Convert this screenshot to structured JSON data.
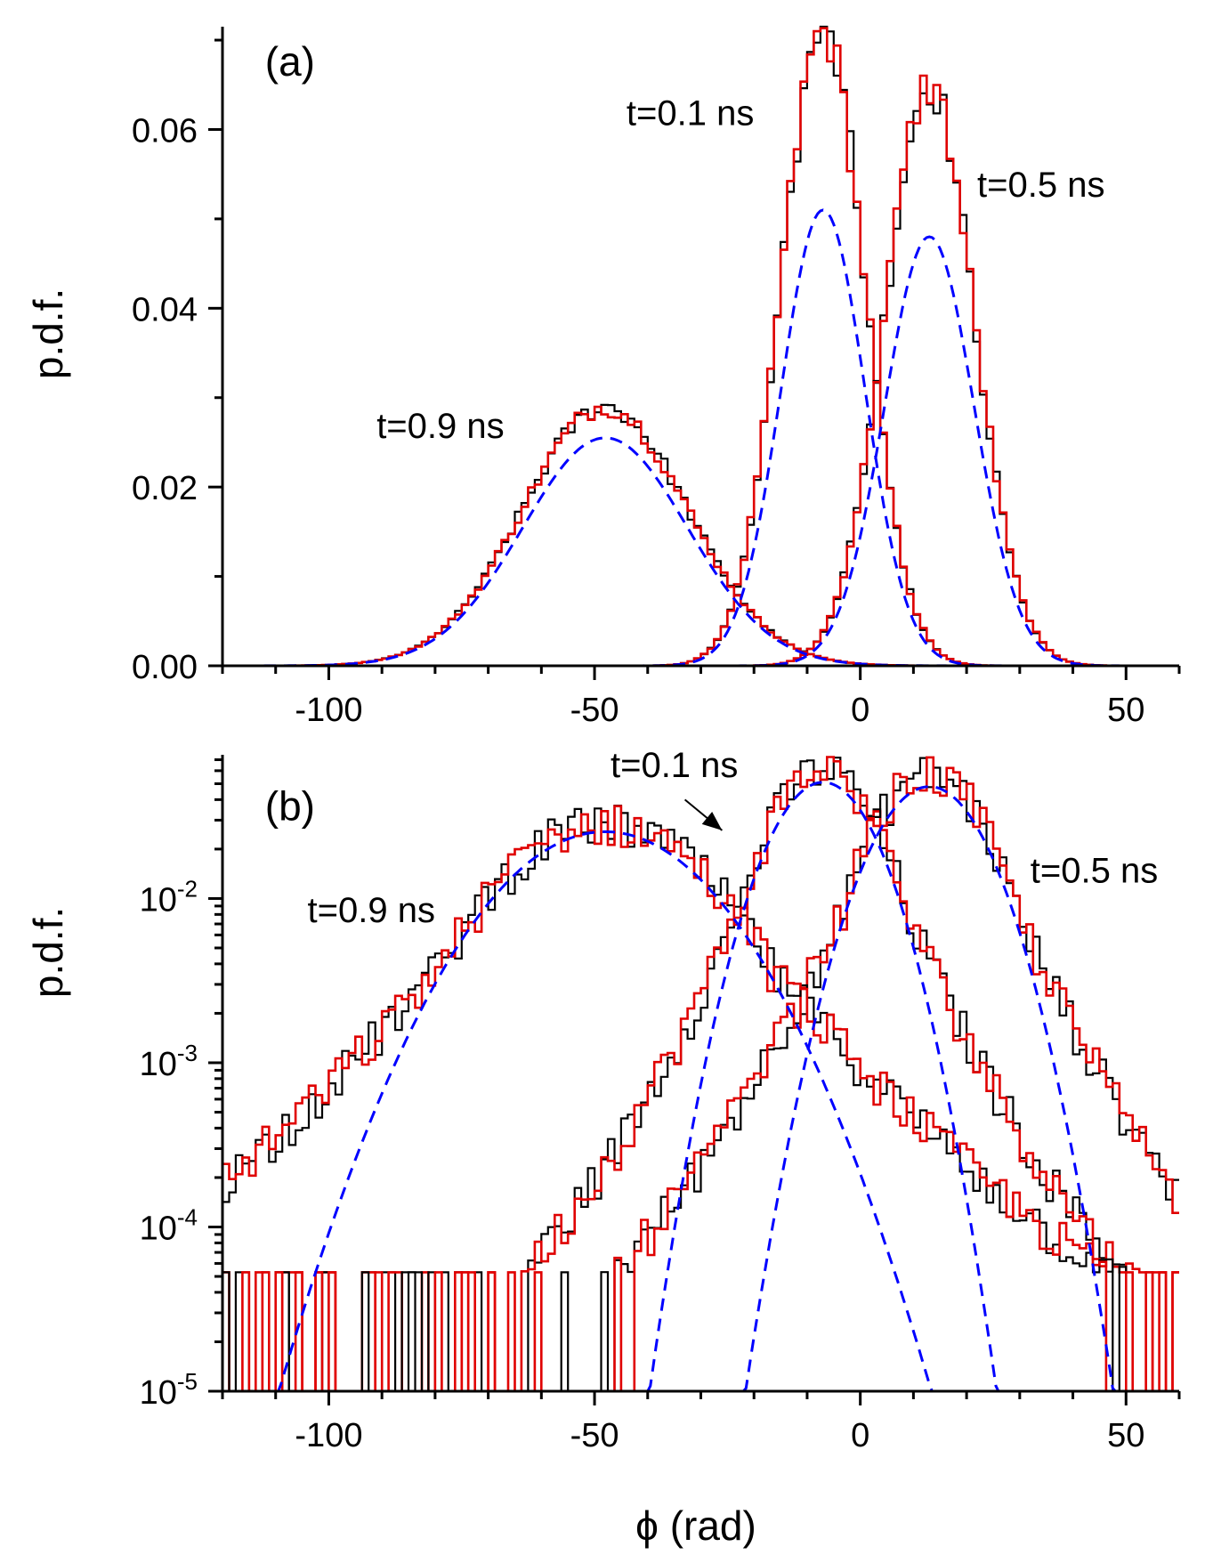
{
  "chart_data": [
    {
      "panel": "(a)",
      "type": "line",
      "scale": "linear",
      "title": "",
      "xlabel": "",
      "ylabel": "p.d.f.",
      "xlim": [
        -120,
        60
      ],
      "ylim": [
        0,
        0.0715
      ],
      "xticks": [
        -100,
        -50,
        0,
        50
      ],
      "xtick_labels": [
        "-100",
        "-50",
        "0",
        "50"
      ],
      "yticks": [
        0,
        0.02,
        0.04,
        0.06
      ],
      "ytick_labels": [
        "0.00",
        "0.02",
        "0.04",
        "0.06"
      ],
      "series": [
        {
          "name": "t=0.1 ns",
          "mean": -7,
          "sigma": 7.9,
          "peak_hist": 0.071,
          "peak_fit": 0.051,
          "kind": "histogram",
          "colors": [
            "#000000",
            "#e00000"
          ]
        },
        {
          "name": "t=0.5 ns",
          "mean": 13,
          "sigma": 8.4,
          "peak_hist": 0.065,
          "peak_fit": 0.048,
          "kind": "histogram",
          "colors": [
            "#000000",
            "#e00000"
          ]
        },
        {
          "name": "t=0.9 ns",
          "mean": -48,
          "sigma": 15.5,
          "peak_hist": 0.029,
          "peak_fit": 0.0255,
          "kind": "histogram",
          "colors": [
            "#000000",
            "#e00000"
          ]
        }
      ],
      "fit_style": {
        "color": "#0000ff",
        "dash": true
      },
      "annotations": [
        {
          "text": "(a)",
          "x": -112,
          "y": 0.066
        },
        {
          "text": "t=0.1 ns",
          "x": -44,
          "y": 0.0605
        },
        {
          "text": "t=0.5 ns",
          "x": 22,
          "y": 0.0525
        },
        {
          "text": "t=0.9 ns",
          "x": -91,
          "y": 0.0255
        }
      ]
    },
    {
      "panel": "(b)",
      "type": "line",
      "scale": "log",
      "title": "",
      "xlabel": "ϕ (rad)",
      "ylabel": "p.d.f.",
      "xlim": [
        -120,
        60
      ],
      "ylim": [
        1e-05,
        0.075
      ],
      "xticks": [
        -100,
        -50,
        0,
        50
      ],
      "xtick_labels": [
        "-100",
        "-50",
        "0",
        "50"
      ],
      "yticks": [
        0.01,
        0.001,
        0.0001,
        1e-05
      ],
      "ytick_base": [
        "10",
        "10",
        "10",
        "10"
      ],
      "ytick_exp": [
        "-2",
        "-3",
        "-4",
        "-5"
      ],
      "series": [
        {
          "name": "t=0.1 ns",
          "mean": -7,
          "sigma": 7.9,
          "peak_hist": 0.062,
          "peak_fit": 0.051
        },
        {
          "name": "t=0.5 ns",
          "mean": 13,
          "sigma": 8.4,
          "peak_hist": 0.058,
          "peak_fit": 0.048
        },
        {
          "name": "t=0.9 ns",
          "mean": -48,
          "sigma": 15.5,
          "peak_hist": 0.029,
          "peak_fit": 0.0255
        }
      ],
      "annotations": [
        {
          "text": "(b)",
          "x": -112,
          "y": 0.03
        },
        {
          "text": "t=0.1 ns",
          "x": -47,
          "y": 0.055
        },
        {
          "text": "t=0.5 ns",
          "x": 32,
          "y": 0.0125
        },
        {
          "text": "t=0.9 ns",
          "x": -104,
          "y": 0.0072
        }
      ]
    }
  ]
}
